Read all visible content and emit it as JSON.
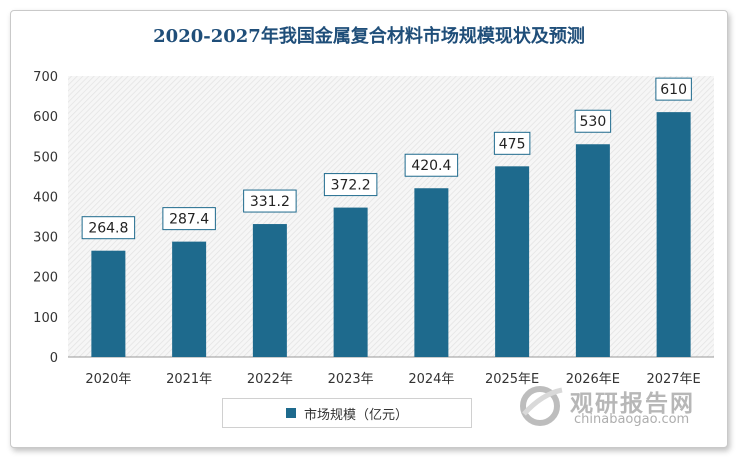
{
  "chart_data": {
    "type": "bar",
    "title": "2020-2027年我国金属复合材料市场规模现状及预测",
    "categories": [
      "2020年",
      "2021年",
      "2022年",
      "2023年",
      "2024年",
      "2025年E",
      "2026年E",
      "2027年E"
    ],
    "series": [
      {
        "name": "市场规模（亿元）",
        "values": [
          264.8,
          287.4,
          331.2,
          372.2,
          420.4,
          475,
          530,
          610
        ]
      }
    ],
    "value_labels": [
      "264.8",
      "287.4",
      "331.2",
      "372.2",
      "420.4",
      "475",
      "530",
      "610"
    ],
    "yticks": [
      "0",
      "100",
      "200",
      "300",
      "400",
      "500",
      "600",
      "700"
    ],
    "ylim": [
      0,
      700
    ],
    "grid": false,
    "plot_area": "hatched",
    "legend_placement": "bottom",
    "colors": {
      "bar": "#1e6a8d",
      "title": "#1f4e79",
      "label_border": "#1e6a8d"
    }
  },
  "watermark": {
    "brand": "观研报告网",
    "url": "chinabaogao.com"
  }
}
